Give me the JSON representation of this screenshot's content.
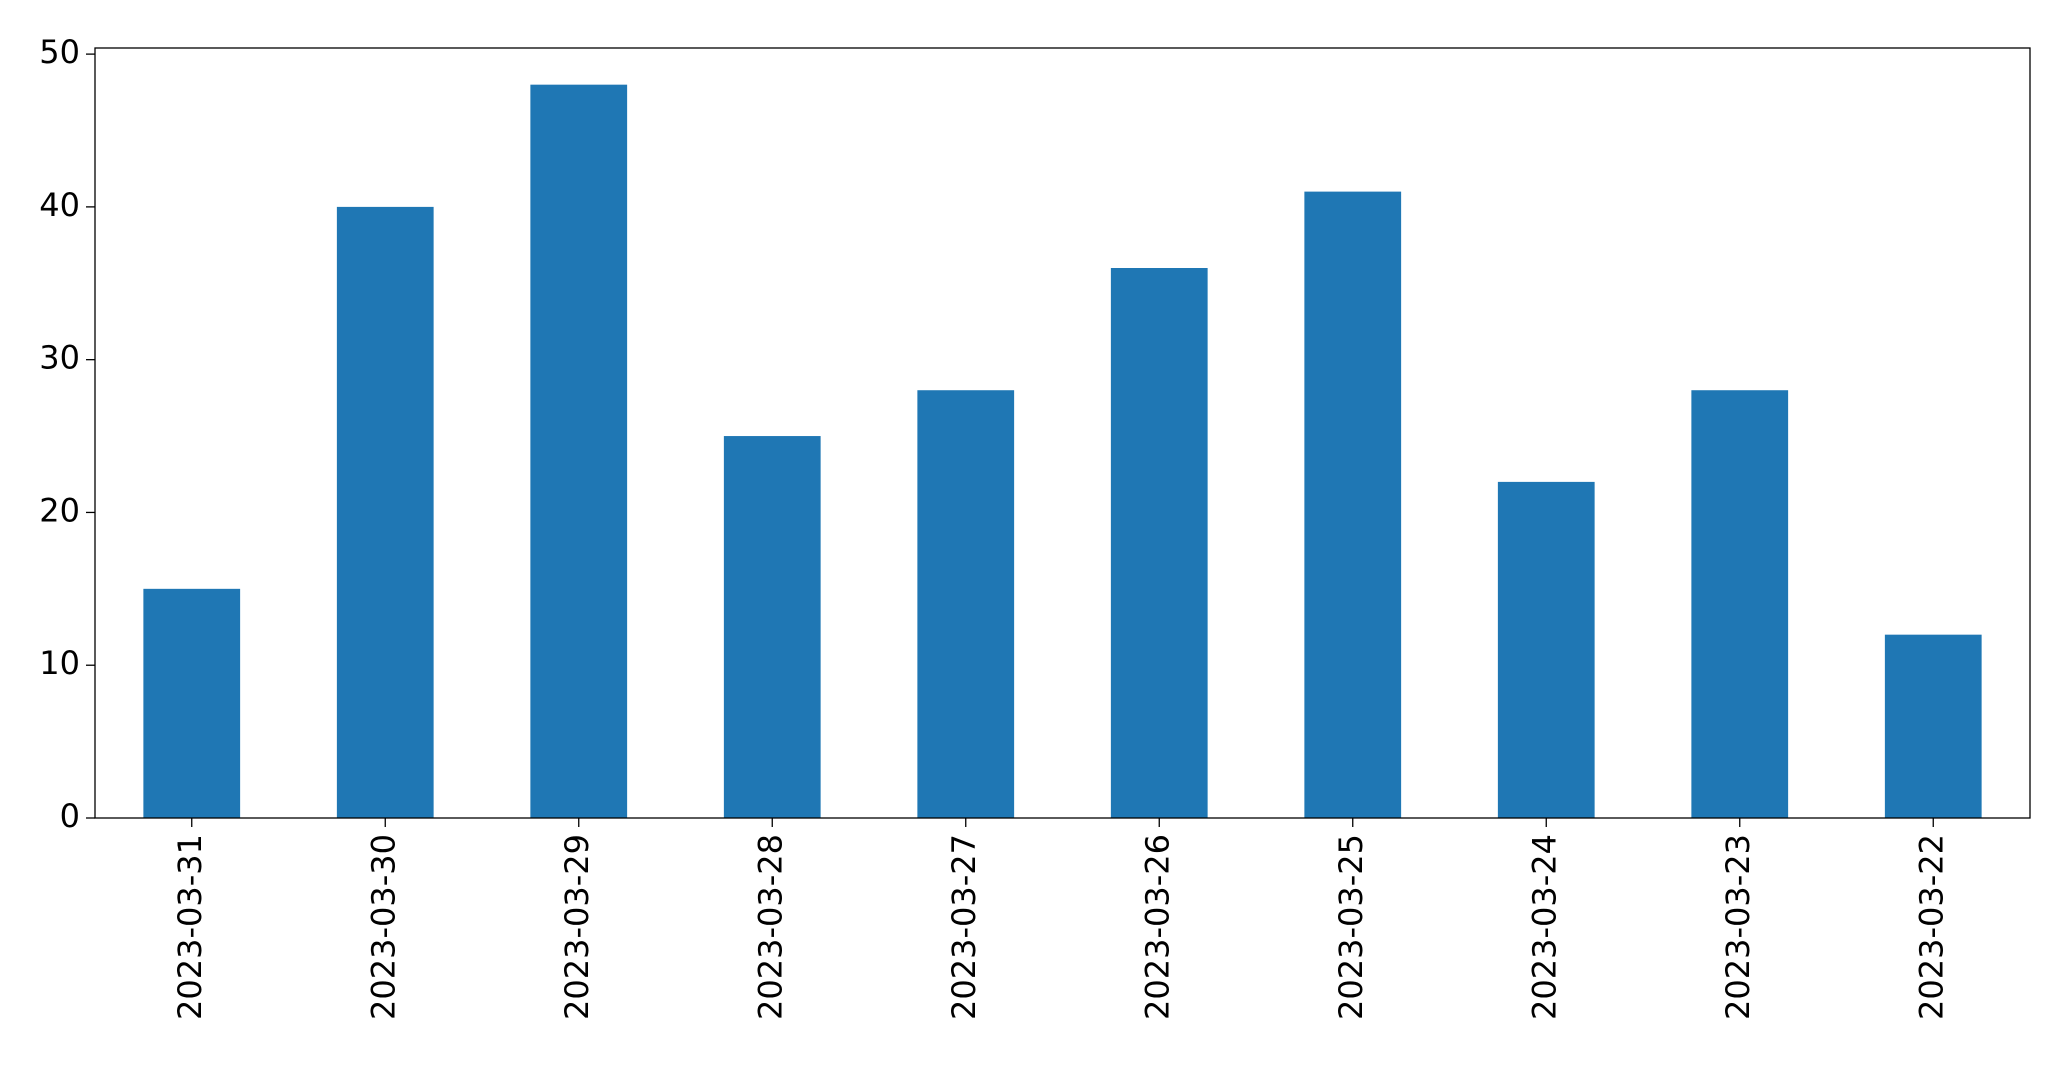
{
  "chart_data": {
    "type": "bar",
    "categories": [
      "2023-03-31",
      "2023-03-30",
      "2023-03-29",
      "2023-03-28",
      "2023-03-27",
      "2023-03-26",
      "2023-03-25",
      "2023-03-24",
      "2023-03-23",
      "2023-03-22"
    ],
    "values": [
      15,
      40,
      48,
      25,
      28,
      36,
      41,
      22,
      28,
      12
    ],
    "color": "#1f77b4",
    "ylim": [
      0,
      50.4
    ],
    "yticks": [
      0,
      10,
      20,
      30,
      40,
      50
    ],
    "grid": false
  }
}
